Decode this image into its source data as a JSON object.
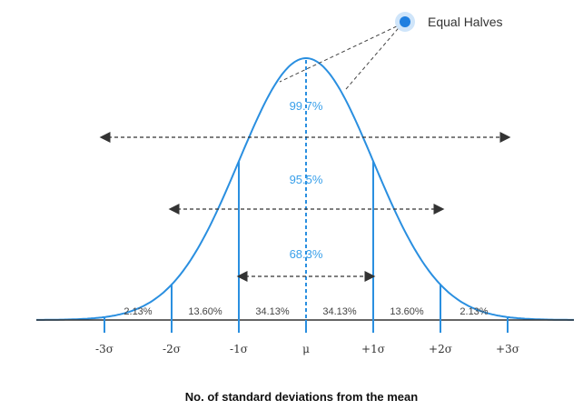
{
  "colors": {
    "curve": "#2a8fe0",
    "text_accent": "#3aa0ea",
    "arrow": "#333333",
    "axis": "#333333"
  },
  "legend": {
    "label": "Equal Halves",
    "icon": "blue-dot-icon"
  },
  "bands": {
    "p997": "99.7%",
    "p955": "95.5%",
    "p683": "68.3%"
  },
  "segments": [
    "2.13%",
    "13.60%",
    "34.13%",
    "34.13%",
    "13.60%",
    "2.13%"
  ],
  "ticks": [
    "-3σ",
    "-2σ",
    "-1σ",
    "μ",
    "+1σ",
    "+2σ",
    "+3σ"
  ],
  "xlabel": "No. of standard deviations from the mean"
}
